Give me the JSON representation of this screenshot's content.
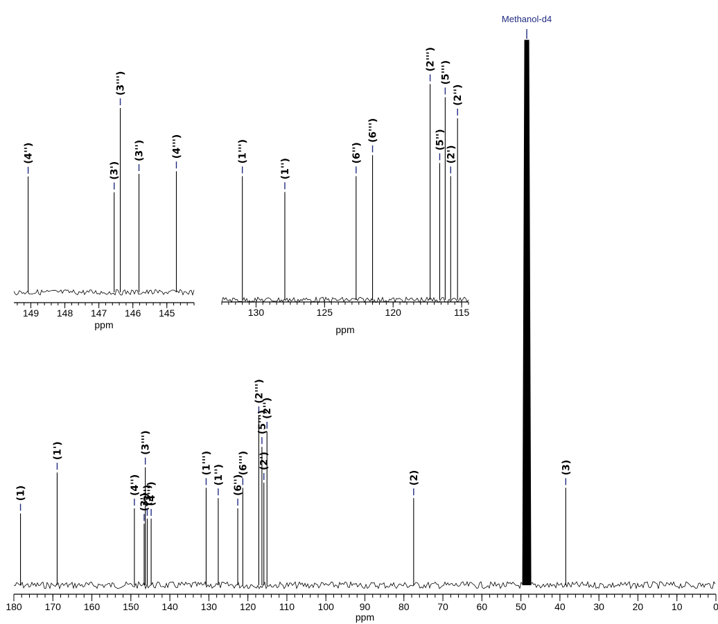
{
  "chart_data": [
    {
      "id": "main",
      "type": "line",
      "xlabel": "ppm",
      "xlim": [
        180,
        0
      ],
      "x_ticks": [
        180,
        170,
        160,
        150,
        140,
        130,
        120,
        110,
        100,
        90,
        80,
        70,
        60,
        50,
        40,
        30,
        20,
        10,
        0
      ],
      "solvent": {
        "label": "Methanol-d4",
        "x": 48.5
      },
      "peaks": [
        {
          "x": 178.3,
          "h": 0.14,
          "label": "(1)"
        },
        {
          "x": 168.9,
          "h": 0.22,
          "label": "(1')"
        },
        {
          "x": 149.1,
          "h": 0.15,
          "label": "(4'')"
        },
        {
          "x": 146.6,
          "h": 0.12,
          "label": "(3')"
        },
        {
          "x": 146.3,
          "h": 0.23,
          "label": "(3''')"
        },
        {
          "x": 145.8,
          "h": 0.13,
          "label": "(3'')"
        },
        {
          "x": 144.8,
          "h": 0.13,
          "label": "(4''')"
        },
        {
          "x": 130.7,
          "h": 0.19,
          "label": "(1''')"
        },
        {
          "x": 127.6,
          "h": 0.17,
          "label": "(1'')"
        },
        {
          "x": 122.6,
          "h": 0.15,
          "label": "(6'')"
        },
        {
          "x": 121.3,
          "h": 0.19,
          "label": "(6''')"
        },
        {
          "x": 117.2,
          "h": 0.33,
          "label": "(2''')"
        },
        {
          "x": 116.4,
          "h": 0.27,
          "label": "(5''')"
        },
        {
          "x": 115.9,
          "h": 0.2,
          "label": "(2')"
        },
        {
          "x": 115.1,
          "h": 0.3,
          "label": "(2'')"
        },
        {
          "x": 77.5,
          "h": 0.17,
          "label": "(2)"
        },
        {
          "x": 38.5,
          "h": 0.19,
          "label": "(3)"
        }
      ]
    },
    {
      "id": "inset1",
      "type": "line",
      "xlabel": "ppm",
      "xlim": [
        149.5,
        144.2
      ],
      "x_ticks": [
        149,
        148,
        147,
        146,
        145
      ],
      "peaks": [
        {
          "x": 149.08,
          "h": 0.44,
          "label": "(4'')"
        },
        {
          "x": 146.55,
          "h": 0.38,
          "label": "(3')"
        },
        {
          "x": 146.37,
          "h": 0.7,
          "label": "(3''')"
        },
        {
          "x": 145.82,
          "h": 0.45,
          "label": "(3'')"
        },
        {
          "x": 144.72,
          "h": 0.46,
          "label": "(4''')"
        }
      ]
    },
    {
      "id": "inset2",
      "type": "line",
      "xlabel": "ppm",
      "xlim": [
        132.5,
        114.5
      ],
      "x_ticks": [
        130,
        125,
        120,
        115
      ],
      "peaks": [
        {
          "x": 131.0,
          "h": 0.47,
          "label": "(1''')"
        },
        {
          "x": 127.9,
          "h": 0.41,
          "label": "(1'')"
        },
        {
          "x": 122.7,
          "h": 0.47,
          "label": "(6'')"
        },
        {
          "x": 121.5,
          "h": 0.55,
          "label": "(6''')"
        },
        {
          "x": 117.3,
          "h": 0.82,
          "label": "(2''')"
        },
        {
          "x": 116.6,
          "h": 0.52,
          "label": "(5'')"
        },
        {
          "x": 116.2,
          "h": 0.77,
          "label": "(5''')"
        },
        {
          "x": 115.8,
          "h": 0.47,
          "label": "(2')"
        },
        {
          "x": 115.3,
          "h": 0.69,
          "label": "(2'')"
        }
      ]
    }
  ]
}
